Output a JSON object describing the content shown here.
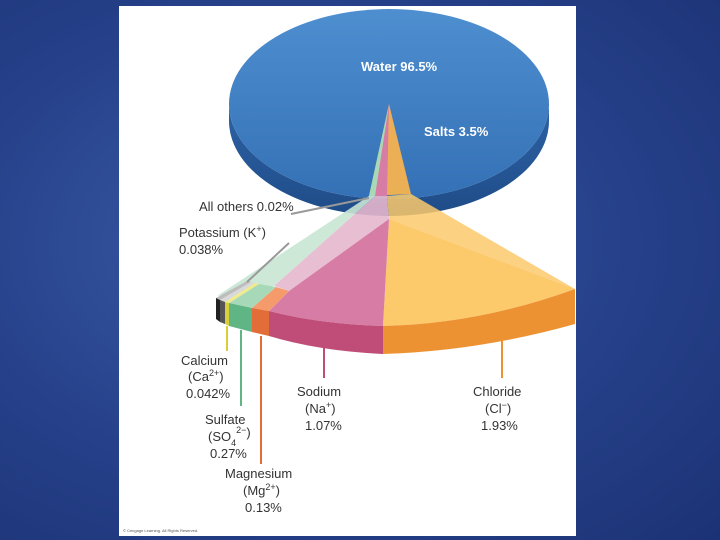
{
  "chart_data": {
    "type": "pie",
    "title": "",
    "main": {
      "slices": [
        {
          "label": "Water 96.5%",
          "value": 96.5,
          "color": "#3d7ec2"
        },
        {
          "label": "Salts 3.5%",
          "value": 3.5,
          "color": "#f6b24f"
        }
      ]
    },
    "salts_breakdown": {
      "slices": [
        {
          "name": "Chloride",
          "formula_base": "Cl",
          "formula_sup": "−",
          "value": 1.93,
          "value_label": "1.93%",
          "top_color": "#fcc96b",
          "side_color": "#ed9233"
        },
        {
          "name": "Sodium",
          "formula_base": "Na",
          "formula_sup": "+",
          "value": 1.07,
          "value_label": "1.07%",
          "top_color": "#d77ca4",
          "side_color": "#c04d78"
        },
        {
          "name": "Magnesium",
          "formula_base": "Mg",
          "formula_sup": "2+",
          "value": 0.13,
          "value_label": "0.13%",
          "top_color": "#f59a6a",
          "side_color": "#e36d38"
        },
        {
          "name": "Sulfate",
          "formula_base": "SO",
          "formula_sub": "4",
          "formula_sup": "2−",
          "value": 0.27,
          "value_label": "0.27%",
          "top_color": "#a7d9b8",
          "side_color": "#5fb583"
        },
        {
          "name": "Calcium",
          "formula_base": "Ca",
          "formula_sup": "2+",
          "value": 0.042,
          "value_label": "0.042%",
          "top_color": "#f0ec8c",
          "side_color": "#d8cf3a"
        },
        {
          "name": "Potassium",
          "formula_base": "K",
          "formula_sup": "+",
          "value": 0.038,
          "value_label": "0.038%",
          "top_color": "#d9d9d9",
          "side_color": "#555555"
        },
        {
          "name": "All others",
          "value": 0.02,
          "value_label": "0.02%",
          "top_color": "#bdbdbd",
          "side_color": "#222222"
        }
      ]
    }
  },
  "labels": {
    "water": "Water 96.5%",
    "salts": "Salts 3.5%",
    "all_others": "All others 0.02%",
    "potassium_1": "Potassium (K",
    "potassium_sup": "+",
    "potassium_2": ")",
    "potassium_value": "0.038%",
    "calcium": "Calcium",
    "calcium_f1": "(Ca",
    "calcium_sup": "2+",
    "calcium_f2": ")",
    "calcium_value": "0.042%",
    "sulfate": "Sulfate",
    "sulfate_f1": "(SO",
    "sulfate_sub": "4",
    "sulfate_sup": "2−",
    "sulfate_f2": ")",
    "sulfate_value": "0.27%",
    "magnesium": "Magnesium",
    "magnesium_f1": "(Mg",
    "magnesium_sup": "2+",
    "magnesium_f2": ")",
    "magnesium_value": "0.13%",
    "sodium": "Sodium",
    "sodium_f1": "(Na",
    "sodium_sup": "+",
    "sodium_f2": ")",
    "sodium_value": "1.07%",
    "chloride": "Chloride",
    "chloride_f1": "(Cl",
    "chloride_sup": "−",
    "chloride_f2": ")",
    "chloride_value": "1.93%",
    "copyright": "© Cengage Learning. All Rights Reserved."
  }
}
